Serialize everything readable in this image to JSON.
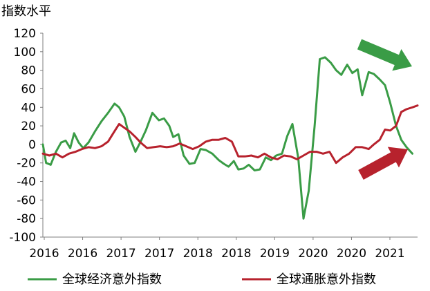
{
  "chart_data": {
    "type": "line",
    "ylabel": "指数水平",
    "ylim": [
      -100,
      120
    ],
    "yticks": [
      120,
      100,
      80,
      60,
      40,
      20,
      0,
      -20,
      -40,
      -60,
      -80,
      -100
    ],
    "xlim": [
      2016.0,
      2021.75
    ],
    "xtick_labels": [
      "2016",
      "2016",
      "2017",
      "2017",
      "2018",
      "2018",
      "2019",
      "2020",
      "2020",
      "2021"
    ],
    "grid": false,
    "legend_position": "bottom",
    "series": [
      {
        "name": "全球经济意外指数",
        "color": "#3a9c46",
        "x": [
          2016.0,
          2016.05,
          2016.12,
          2016.2,
          2016.28,
          2016.35,
          2016.42,
          2016.48,
          2016.55,
          2016.62,
          2016.7,
          2016.8,
          2016.9,
          2017.0,
          2017.1,
          2017.17,
          2017.25,
          2017.33,
          2017.42,
          2017.5,
          2017.58,
          2017.68,
          2017.78,
          2017.86,
          2017.94,
          2018.0,
          2018.08,
          2018.16,
          2018.25,
          2018.33,
          2018.42,
          2018.5,
          2018.6,
          2018.7,
          2018.78,
          2018.85,
          2018.93,
          2019.0,
          2019.08,
          2019.16,
          2019.25,
          2019.33,
          2019.42,
          2019.5,
          2019.58,
          2019.67,
          2019.75,
          2019.83,
          2019.92,
          2020.0,
          2020.08,
          2020.17,
          2020.25,
          2020.33,
          2020.42,
          2020.5,
          2020.58,
          2020.67,
          2020.75,
          2020.83,
          2020.9,
          2021.0,
          2021.08,
          2021.17,
          2021.25,
          2021.33,
          2021.42,
          2021.5,
          2021.58,
          2021.67
        ],
        "values": [
          0,
          -20,
          -22,
          -8,
          2,
          4,
          -4,
          12,
          2,
          -4,
          2,
          14,
          25,
          34,
          44,
          40,
          30,
          8,
          -8,
          3,
          15,
          34,
          26,
          28,
          20,
          8,
          11,
          -12,
          -21,
          -20,
          -5,
          -6,
          -10,
          -17,
          -21,
          -24,
          -18,
          -27,
          -26,
          -22,
          -28,
          -27,
          -14,
          -17,
          -12,
          -10,
          9,
          22,
          -15,
          -80,
          -50,
          20,
          92,
          94,
          88,
          80,
          75,
          86,
          77,
          81,
          53,
          78,
          76,
          70,
          64,
          45,
          20,
          5,
          -3,
          -10
        ]
      },
      {
        "name": "全球通胀意外指数",
        "color": "#b7222d",
        "x": [
          2016.0,
          2016.1,
          2016.2,
          2016.3,
          2016.4,
          2016.5,
          2016.6,
          2016.7,
          2016.8,
          2016.9,
          2017.0,
          2017.08,
          2017.17,
          2017.25,
          2017.33,
          2017.42,
          2017.5,
          2017.6,
          2017.7,
          2017.8,
          2017.9,
          2018.0,
          2018.1,
          2018.2,
          2018.3,
          2018.4,
          2018.5,
          2018.6,
          2018.7,
          2018.8,
          2018.9,
          2019.0,
          2019.1,
          2019.2,
          2019.3,
          2019.4,
          2019.5,
          2019.6,
          2019.7,
          2019.8,
          2019.9,
          2020.0,
          2020.1,
          2020.2,
          2020.3,
          2020.4,
          2020.5,
          2020.6,
          2020.7,
          2020.8,
          2020.9,
          2021.0,
          2021.08,
          2021.17,
          2021.25,
          2021.33,
          2021.42,
          2021.5,
          2021.58,
          2021.67,
          2021.75
        ],
        "values": [
          -10,
          -12,
          -10,
          -14,
          -10,
          -8,
          -5,
          -3,
          -4,
          -2,
          3,
          12,
          22,
          18,
          14,
          8,
          2,
          -4,
          -3,
          -2,
          -3,
          -2,
          1,
          -2,
          -5,
          -2,
          3,
          5,
          5,
          7,
          3,
          -13,
          -13,
          -12,
          -14,
          -10,
          -14,
          -16,
          -12,
          -13,
          -16,
          -12,
          -8,
          -8,
          -10,
          -8,
          -20,
          -14,
          -10,
          -3,
          -3,
          -5,
          0,
          5,
          16,
          15,
          20,
          35,
          38,
          40,
          42
        ]
      }
    ],
    "annotations": [
      {
        "type": "arrow",
        "color": "#3a9c46",
        "direction": "down-right"
      },
      {
        "type": "arrow",
        "color": "#b7222d",
        "direction": "up-right"
      }
    ]
  },
  "legend": {
    "economic": "全球经济意外指数",
    "inflation": "全球通胀意外指数"
  }
}
